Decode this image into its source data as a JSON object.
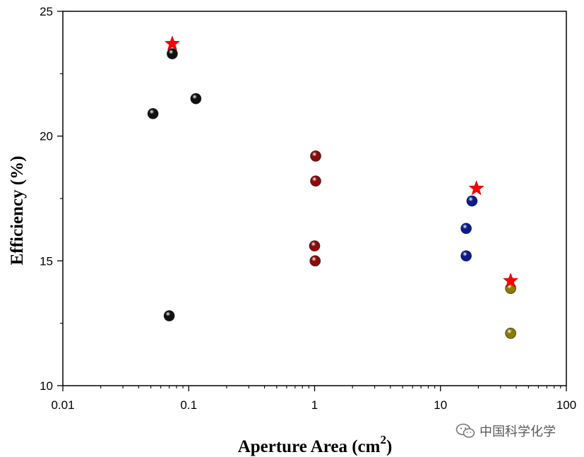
{
  "chart_data": {
    "type": "scatter",
    "xlabel": "Aperture Area (cm",
    "xlabel_sup": "2",
    "xlabel_close": ")",
    "ylabel": "Efficiency (%)",
    "xscale": "log",
    "xlim": [
      0.01,
      100
    ],
    "ylim": [
      10,
      25
    ],
    "x_ticks": [
      0.01,
      0.1,
      1,
      10,
      100
    ],
    "x_tick_labels": [
      "0.01",
      "0.1",
      "1",
      "10",
      "100"
    ],
    "y_ticks": [
      10,
      15,
      20,
      25
    ],
    "y_tick_labels": [
      "10",
      "15",
      "20",
      "25"
    ],
    "grid": false,
    "series": [
      {
        "color": "#111111",
        "marker": "sphere",
        "points": [
          {
            "x": 0.052,
            "y": 20.9
          },
          {
            "x": 0.074,
            "y": 23.3
          },
          {
            "x": 0.114,
            "y": 21.5
          },
          {
            "x": 0.07,
            "y": 12.8
          }
        ]
      },
      {
        "color": "#8b0a0a",
        "marker": "sphere",
        "points": [
          {
            "x": 1.02,
            "y": 19.2
          },
          {
            "x": 1.02,
            "y": 18.2
          },
          {
            "x": 1.0,
            "y": 15.6
          },
          {
            "x": 1.01,
            "y": 15.0
          }
        ]
      },
      {
        "color": "#0d1a8c",
        "marker": "sphere",
        "points": [
          {
            "x": 17.8,
            "y": 17.4
          },
          {
            "x": 16.0,
            "y": 16.3
          },
          {
            "x": 16.0,
            "y": 15.2
          }
        ]
      },
      {
        "color": "#8a7a00",
        "marker": "sphere",
        "points": [
          {
            "x": 36.1,
            "y": 13.9
          },
          {
            "x": 36.1,
            "y": 12.1
          }
        ]
      },
      {
        "color": "#ff0000",
        "marker": "star",
        "points": [
          {
            "x": 0.074,
            "y": 23.7
          },
          {
            "x": 19.3,
            "y": 17.9
          },
          {
            "x": 36.1,
            "y": 14.2
          }
        ]
      }
    ]
  },
  "watermark": {
    "text": "中国科学化学",
    "icon": "wechat-icon"
  }
}
